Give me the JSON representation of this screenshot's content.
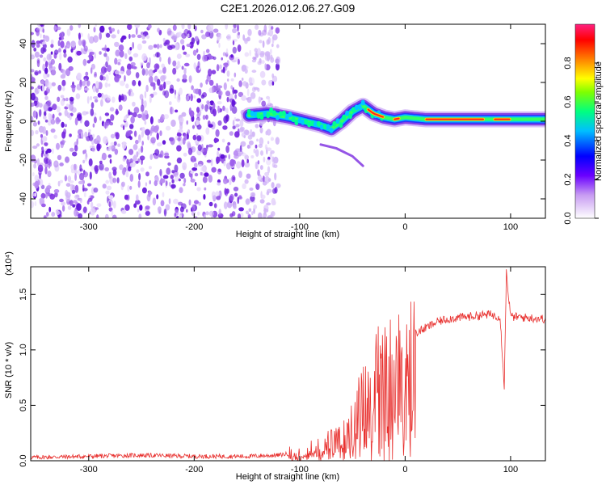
{
  "title": "C2E1.2026.012.06.27.G09",
  "colors": {
    "spectrum_purple": "#7a2be0",
    "snr_line": "#e8312f"
  },
  "chart_data": [
    {
      "type": "heatmap",
      "xlabel": "Height of straight line (km)",
      "ylabel": "Frequency (Hz)",
      "xlim": [
        -355,
        133
      ],
      "ylim": [
        -50,
        50
      ],
      "x_ticks": [
        -300,
        -200,
        -100,
        0,
        100
      ],
      "y_ticks": [
        -40,
        -20,
        0,
        20,
        40
      ],
      "colorbar": {
        "label": "Normalized spectral amplitude",
        "range": [
          0,
          1
        ],
        "ticks": [
          "0.0",
          "0.2",
          "0.4",
          "0.6",
          "0.8"
        ],
        "colormap": "rainbow"
      },
      "noise_region_x": [
        -355,
        -120
      ],
      "signal_track": [
        {
          "x": -148,
          "y": 3
        },
        {
          "x": -130,
          "y": 4
        },
        {
          "x": -110,
          "y": 2
        },
        {
          "x": -95,
          "y": 0
        },
        {
          "x": -80,
          "y": -2
        },
        {
          "x": -70,
          "y": -4
        },
        {
          "x": -60,
          "y": 0
        },
        {
          "x": -50,
          "y": 5
        },
        {
          "x": -40,
          "y": 8
        },
        {
          "x": -30,
          "y": 4
        },
        {
          "x": -20,
          "y": 2
        },
        {
          "x": -10,
          "y": 1
        },
        {
          "x": 0,
          "y": 2
        },
        {
          "x": 20,
          "y": 1
        },
        {
          "x": 50,
          "y": 1
        },
        {
          "x": 90,
          "y": 1
        },
        {
          "x": 133,
          "y": 1
        }
      ],
      "descending_branch": [
        {
          "x": -80,
          "y": -12
        },
        {
          "x": -65,
          "y": -14
        },
        {
          "x": -50,
          "y": -18
        },
        {
          "x": -40,
          "y": -23
        }
      ]
    },
    {
      "type": "line",
      "xlabel": "Height of straight line (km)",
      "ylabel": "SNR (10 * v/v)",
      "y_multiplier": "(x10⁴)",
      "xlim": [
        -355,
        133
      ],
      "ylim": [
        0,
        1.75
      ],
      "x_ticks": [
        -300,
        -200,
        -100,
        0,
        100
      ],
      "y_ticks": [
        "0.0",
        "0.5",
        "1.0",
        "1.5"
      ],
      "series": [
        {
          "x": [
            -355,
            -300,
            -250,
            -200,
            -150,
            -120,
            -100,
            -80,
            -60,
            -50,
            -40,
            -30,
            -20,
            -10,
            0,
            10,
            20,
            30,
            40,
            60,
            80,
            90,
            94,
            96,
            100,
            133
          ],
          "y": [
            0.03,
            0.04,
            0.05,
            0.04,
            0.04,
            0.05,
            0.08,
            0.15,
            0.2,
            0.45,
            0.6,
            0.85,
            0.9,
            1.0,
            0.95,
            1.15,
            1.2,
            1.25,
            1.28,
            1.3,
            1.32,
            1.3,
            0.68,
            1.7,
            1.3,
            1.28
          ]
        }
      ]
    }
  ]
}
